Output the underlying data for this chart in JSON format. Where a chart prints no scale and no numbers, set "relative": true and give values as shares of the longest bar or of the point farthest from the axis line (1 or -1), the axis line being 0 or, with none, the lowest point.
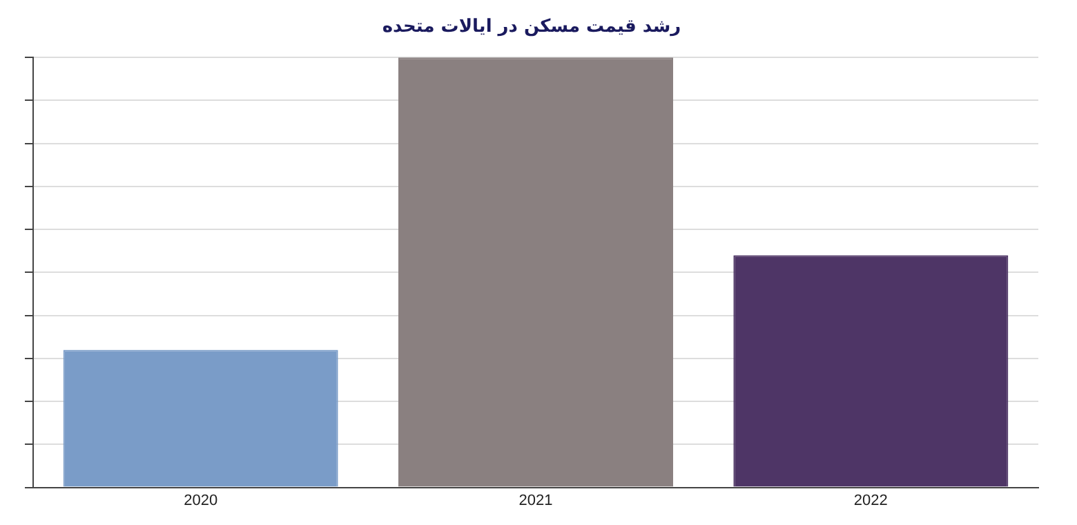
{
  "chart_data": {
    "type": "bar",
    "title": "رشد قیمت مسکن در ایالات متحده",
    "categories": [
      "2020",
      "2021",
      "2022"
    ],
    "relative": true,
    "values": [
      0.32,
      1,
      0.54
    ],
    "colors": [
      "#7a9cc8",
      "#8a8080",
      "#4e3566"
    ],
    "grid": "y",
    "legend": false
  }
}
